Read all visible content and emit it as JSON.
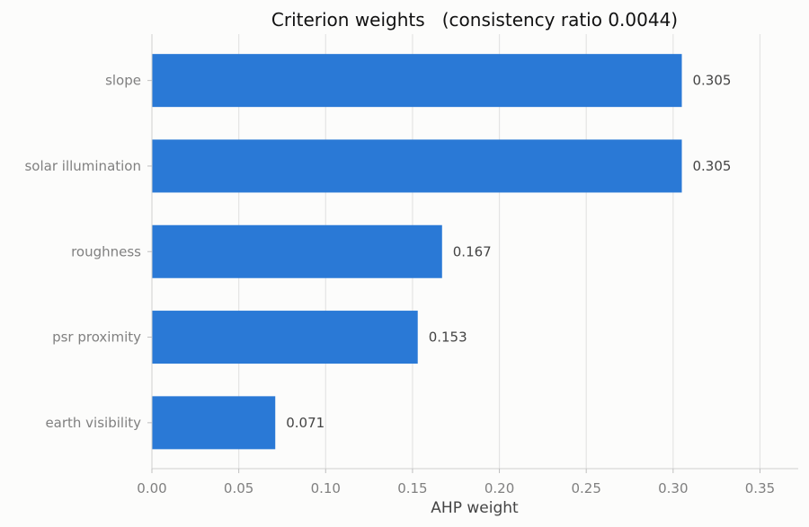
{
  "chart_data": {
    "type": "bar",
    "orientation": "horizontal",
    "title": "Criterion weights   (consistency ratio 0.0044)",
    "xlabel": "AHP weight",
    "ylabel": "",
    "categories": [
      "slope",
      "solar illumination",
      "roughness",
      "psr proximity",
      "earth visibility"
    ],
    "values": [
      0.305,
      0.305,
      0.167,
      0.153,
      0.071
    ],
    "data_labels": [
      "0.305",
      "0.305",
      "0.167",
      "0.153",
      "0.071"
    ],
    "xlim": [
      0,
      0.372
    ],
    "xticks": [
      0.0,
      0.05,
      0.1,
      0.15,
      0.2,
      0.25,
      0.3,
      0.35
    ],
    "xtick_labels": [
      "0.00",
      "0.05",
      "0.10",
      "0.15",
      "0.20",
      "0.25",
      "0.30",
      "0.35"
    ],
    "grid": "vertical",
    "bar_color": "#2a79d6"
  }
}
